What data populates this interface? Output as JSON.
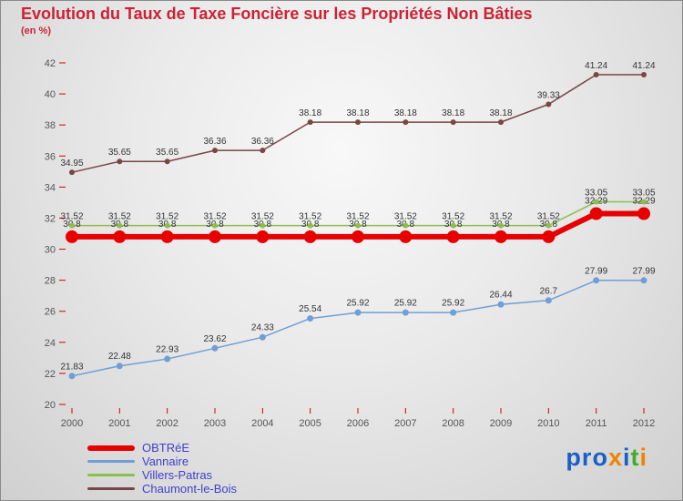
{
  "chart_data": {
    "type": "line",
    "title": "Evolution du Taux de Taxe Foncière sur les Propriétés Non Bâties",
    "subtitle": "(en %)",
    "x": [
      "2000",
      "2001",
      "2002",
      "2003",
      "2004",
      "2005",
      "2006",
      "2007",
      "2008",
      "2009",
      "2010",
      "2011",
      "2012"
    ],
    "ylim": [
      20,
      42
    ],
    "ytick_step": 2,
    "grid": false,
    "legend_position": "bottom-left",
    "series": [
      {
        "name": "OBTRéE",
        "color": "#e60000",
        "line_width": 6,
        "marker_radius": 7,
        "values": [
          30.8,
          30.8,
          30.8,
          30.8,
          30.8,
          30.8,
          30.8,
          30.8,
          30.8,
          30.8,
          30.8,
          32.29,
          32.29
        ]
      },
      {
        "name": "Vannaire",
        "color": "#6f9fd4",
        "line_width": 1.5,
        "marker_radius": 3.5,
        "values": [
          21.83,
          22.48,
          22.93,
          23.62,
          24.33,
          25.54,
          25.92,
          25.92,
          25.92,
          26.44,
          26.7,
          27.99,
          27.99
        ]
      },
      {
        "name": "Villers-Patras",
        "color": "#8cbf4a",
        "line_width": 1.5,
        "marker_radius": 3,
        "values": [
          31.52,
          31.52,
          31.52,
          31.52,
          31.52,
          31.52,
          31.52,
          31.52,
          31.52,
          31.52,
          31.52,
          33.05,
          33.05
        ]
      },
      {
        "name": "Chaumont-le-Bois",
        "color": "#7a4545",
        "line_width": 1.5,
        "marker_radius": 3,
        "values": [
          34.95,
          35.65,
          35.65,
          36.36,
          36.36,
          38.18,
          38.18,
          38.18,
          38.18,
          38.18,
          39.33,
          41.24,
          41.24
        ]
      }
    ]
  },
  "styles": {
    "title_color": "#cc2233",
    "axis_label_color": "#555555",
    "point_label_color": "#333333",
    "tick_color": "#d40000",
    "legend_text_color": "#4040cc"
  },
  "logo": {
    "text": "proxiti",
    "letters": [
      {
        "char": "p",
        "style": "color:#1a5fc8"
      },
      {
        "char": "r",
        "style": "color:#1a5fc8"
      },
      {
        "char": "o",
        "style": "color:#1a5fc8"
      },
      {
        "char": "x",
        "style": "color:#f08300"
      },
      {
        "char": "i",
        "style": "color:#1a5fc8"
      },
      {
        "char": "t",
        "style": "color:#3fae2a"
      },
      {
        "char": "i",
        "style": "color:#f08300"
      }
    ]
  }
}
